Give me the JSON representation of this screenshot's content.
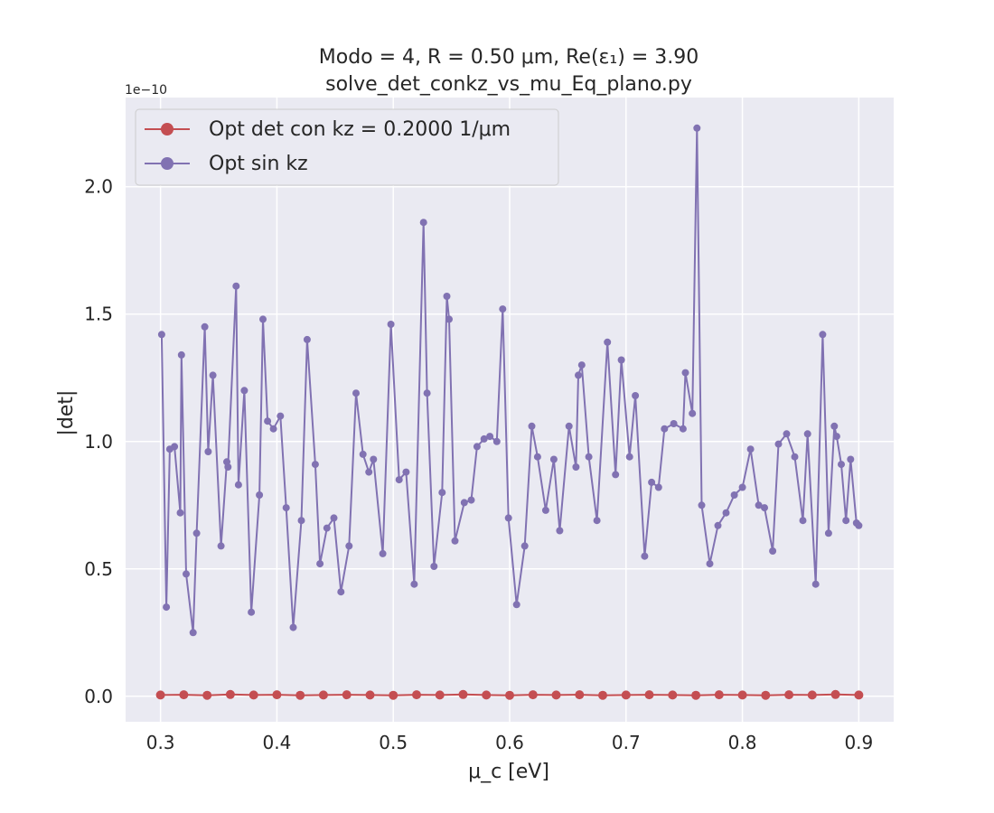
{
  "chart_data": {
    "type": "line",
    "title_line1": "Modo = 4, R = 0.50 μm, Re(ε₁) = 3.90",
    "title_line2": "solve_det_conkz_vs_mu_Eq_plano.py",
    "xlabel": "μ_c [eV]",
    "ylabel": "|det|",
    "y_multiplier": "1e−10",
    "xlim": [
      0.27,
      0.93
    ],
    "ylim": [
      -0.1,
      2.35
    ],
    "xticks": [
      0.3,
      0.4,
      0.5,
      0.6,
      0.7,
      0.8,
      0.9
    ],
    "xtick_labels": [
      "0.3",
      "0.4",
      "0.5",
      "0.6",
      "0.7",
      "0.8",
      "0.9"
    ],
    "yticks": [
      0.0,
      0.5,
      1.0,
      1.5,
      2.0
    ],
    "ytick_labels": [
      "0.0",
      "0.5",
      "1.0",
      "1.5",
      "2.0"
    ],
    "grid": true,
    "legend_position": "top-left",
    "background": "#eaeaf2",
    "series": [
      {
        "name": "Opt det con kz = 0.2000 1/μm",
        "color": "#c44e52",
        "x": [
          0.3,
          0.32,
          0.34,
          0.36,
          0.38,
          0.4,
          0.42,
          0.44,
          0.46,
          0.48,
          0.5,
          0.52,
          0.54,
          0.56,
          0.58,
          0.6,
          0.62,
          0.64,
          0.66,
          0.68,
          0.7,
          0.72,
          0.74,
          0.76,
          0.78,
          0.8,
          0.82,
          0.84,
          0.86,
          0.88,
          0.9
        ],
        "y": [
          0.005,
          0.006,
          0.004,
          0.007,
          0.005,
          0.006,
          0.004,
          0.005,
          0.006,
          0.005,
          0.004,
          0.006,
          0.005,
          0.007,
          0.005,
          0.004,
          0.006,
          0.005,
          0.006,
          0.004,
          0.005,
          0.006,
          0.005,
          0.004,
          0.006,
          0.005,
          0.004,
          0.006,
          0.005,
          0.007,
          0.005
        ]
      },
      {
        "name": "Opt sin kz",
        "color": "#8172b2",
        "x": [
          0.301,
          0.305,
          0.308,
          0.312,
          0.317,
          0.318,
          0.322,
          0.328,
          0.331,
          0.338,
          0.341,
          0.345,
          0.352,
          0.357,
          0.358,
          0.365,
          0.367,
          0.372,
          0.378,
          0.385,
          0.388,
          0.392,
          0.397,
          0.403,
          0.408,
          0.414,
          0.421,
          0.426,
          0.433,
          0.437,
          0.443,
          0.449,
          0.455,
          0.462,
          0.468,
          0.474,
          0.479,
          0.483,
          0.491,
          0.498,
          0.505,
          0.511,
          0.518,
          0.526,
          0.529,
          0.535,
          0.542,
          0.546,
          0.548,
          0.553,
          0.561,
          0.567,
          0.572,
          0.578,
          0.583,
          0.589,
          0.594,
          0.599,
          0.606,
          0.613,
          0.619,
          0.624,
          0.631,
          0.638,
          0.643,
          0.651,
          0.657,
          0.659,
          0.662,
          0.668,
          0.675,
          0.684,
          0.691,
          0.696,
          0.703,
          0.708,
          0.716,
          0.722,
          0.728,
          0.733,
          0.741,
          0.749,
          0.751,
          0.757,
          0.761,
          0.765,
          0.772,
          0.779,
          0.786,
          0.793,
          0.8,
          0.807,
          0.814,
          0.819,
          0.826,
          0.831,
          0.838,
          0.845,
          0.852,
          0.856,
          0.863,
          0.869,
          0.874,
          0.879,
          0.881,
          0.885,
          0.889,
          0.893,
          0.898,
          0.9
        ],
        "y": [
          1.42,
          0.35,
          0.97,
          0.98,
          0.72,
          1.34,
          0.48,
          0.25,
          0.64,
          1.45,
          0.96,
          1.26,
          0.59,
          0.92,
          0.9,
          1.61,
          0.83,
          1.2,
          0.33,
          0.79,
          1.48,
          1.08,
          1.05,
          1.1,
          0.74,
          0.27,
          0.69,
          1.4,
          0.91,
          0.52,
          0.66,
          0.7,
          0.41,
          0.59,
          1.19,
          0.95,
          0.88,
          0.93,
          0.56,
          1.46,
          0.85,
          0.88,
          0.44,
          1.86,
          1.19,
          0.51,
          0.8,
          1.57,
          1.48,
          0.61,
          0.76,
          0.77,
          0.98,
          1.01,
          1.02,
          1.0,
          1.52,
          0.7,
          0.36,
          0.59,
          1.06,
          0.94,
          0.73,
          0.93,
          0.65,
          1.06,
          0.9,
          1.26,
          1.3,
          0.94,
          0.69,
          1.39,
          0.87,
          1.32,
          0.94,
          1.18,
          0.55,
          0.84,
          0.82,
          1.05,
          1.07,
          1.05,
          1.27,
          1.11,
          2.23,
          0.75,
          0.52,
          0.67,
          0.72,
          0.79,
          0.82,
          0.97,
          0.75,
          0.74,
          0.57,
          0.99,
          1.03,
          0.94,
          0.69,
          1.03,
          0.44,
          1.42,
          0.64,
          1.06,
          1.02,
          0.91,
          0.69,
          0.93,
          0.68,
          0.67
        ]
      }
    ]
  }
}
